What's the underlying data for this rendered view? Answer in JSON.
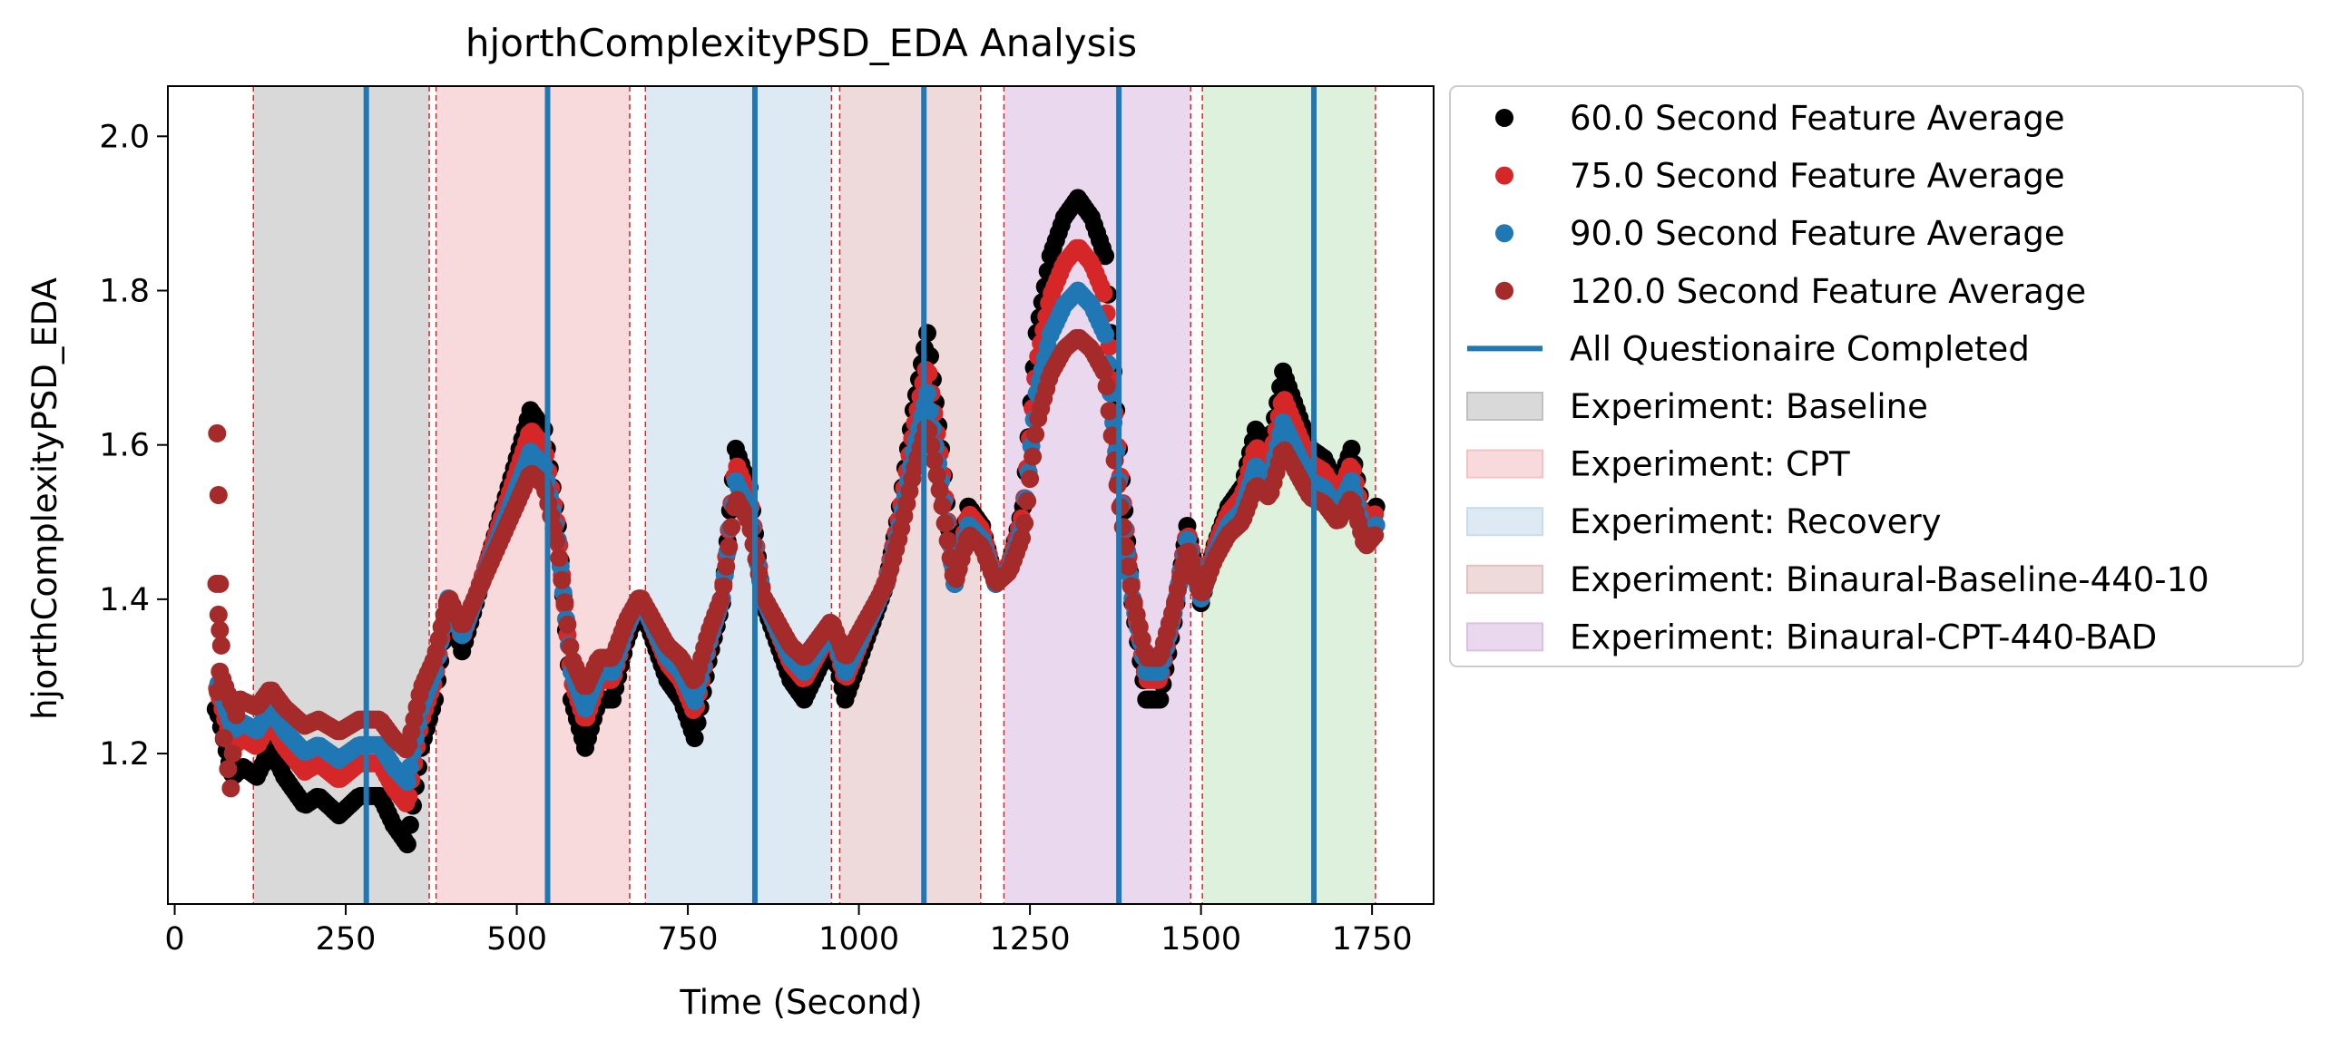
{
  "chart_data": {
    "type": "scatter",
    "title": "hjorthComplexityPSD_EDA Analysis",
    "xlabel": "Time (Second)",
    "ylabel": "hjorthComplexityPSD_EDA",
    "xlim": [
      -10,
      1840
    ],
    "ylim": [
      1.005,
      2.065
    ],
    "xticks": [
      0,
      250,
      500,
      750,
      1000,
      1250,
      1500,
      1750
    ],
    "yticks": [
      1.2,
      1.4,
      1.6,
      1.8,
      2.0
    ],
    "xtick_labels": [
      "0",
      "250",
      "500",
      "750",
      "1000",
      "1250",
      "1500",
      "1750"
    ],
    "ytick_labels": [
      "1.2",
      "1.4",
      "1.6",
      "1.8",
      "2.0"
    ],
    "legend_position": "outside-right-top",
    "grid": false,
    "colors": {
      "s60": "#000000",
      "s75": "#d62728",
      "s90": "#1f77b4",
      "s120": "#a52a2a",
      "questionnaire": "#1f77b4",
      "boundary": "#d62728"
    },
    "curve": [
      [
        62,
        1.29
      ],
      [
        75,
        1.25
      ],
      [
        85,
        1.22
      ],
      [
        100,
        1.23
      ],
      [
        120,
        1.22
      ],
      [
        140,
        1.25
      ],
      [
        160,
        1.22
      ],
      [
        190,
        1.19
      ],
      [
        210,
        1.2
      ],
      [
        240,
        1.18
      ],
      [
        270,
        1.2
      ],
      [
        300,
        1.2
      ],
      [
        320,
        1.17
      ],
      [
        340,
        1.15
      ],
      [
        360,
        1.25
      ],
      [
        380,
        1.3
      ],
      [
        400,
        1.4
      ],
      [
        420,
        1.35
      ],
      [
        440,
        1.4
      ],
      [
        460,
        1.45
      ],
      [
        480,
        1.5
      ],
      [
        500,
        1.55
      ],
      [
        520,
        1.6
      ],
      [
        540,
        1.58
      ],
      [
        560,
        1.48
      ],
      [
        580,
        1.3
      ],
      [
        600,
        1.25
      ],
      [
        620,
        1.3
      ],
      [
        640,
        1.3
      ],
      [
        660,
        1.36
      ],
      [
        680,
        1.4
      ],
      [
        700,
        1.36
      ],
      [
        720,
        1.32
      ],
      [
        740,
        1.3
      ],
      [
        760,
        1.26
      ],
      [
        780,
        1.34
      ],
      [
        800,
        1.4
      ],
      [
        820,
        1.56
      ],
      [
        840,
        1.52
      ],
      [
        860,
        1.4
      ],
      [
        880,
        1.36
      ],
      [
        900,
        1.32
      ],
      [
        920,
        1.3
      ],
      [
        940,
        1.33
      ],
      [
        960,
        1.36
      ],
      [
        980,
        1.3
      ],
      [
        1000,
        1.34
      ],
      [
        1020,
        1.38
      ],
      [
        1040,
        1.42
      ],
      [
        1060,
        1.5
      ],
      [
        1080,
        1.6
      ],
      [
        1100,
        1.68
      ],
      [
        1120,
        1.56
      ],
      [
        1140,
        1.42
      ],
      [
        1160,
        1.5
      ],
      [
        1180,
        1.48
      ],
      [
        1200,
        1.42
      ],
      [
        1220,
        1.44
      ],
      [
        1240,
        1.5
      ],
      [
        1260,
        1.68
      ],
      [
        1280,
        1.76
      ],
      [
        1300,
        1.8
      ],
      [
        1320,
        1.82
      ],
      [
        1340,
        1.8
      ],
      [
        1360,
        1.76
      ],
      [
        1380,
        1.56
      ],
      [
        1400,
        1.4
      ],
      [
        1420,
        1.3
      ],
      [
        1440,
        1.3
      ],
      [
        1460,
        1.38
      ],
      [
        1480,
        1.48
      ],
      [
        1500,
        1.4
      ],
      [
        1520,
        1.46
      ],
      [
        1540,
        1.5
      ],
      [
        1560,
        1.52
      ],
      [
        1580,
        1.58
      ],
      [
        1600,
        1.56
      ],
      [
        1620,
        1.64
      ],
      [
        1640,
        1.6
      ],
      [
        1660,
        1.56
      ],
      [
        1680,
        1.55
      ],
      [
        1700,
        1.52
      ],
      [
        1720,
        1.56
      ],
      [
        1740,
        1.48
      ],
      [
        1755,
        1.5
      ]
    ],
    "series": [
      {
        "name": "60.0 Second Feature Average",
        "color_key": "s60",
        "amp": 1.25,
        "offset": 0.0,
        "x_start": 60
      },
      {
        "name": "75.0 Second Feature Average",
        "color_key": "s75",
        "amp": 1.08,
        "offset": 0.005,
        "x_start": 62
      },
      {
        "name": "90.0 Second Feature Average",
        "color_key": "s90",
        "amp": 0.95,
        "offset": 0.0,
        "x_start": 64
      },
      {
        "name": "120.0 Second Feature Average",
        "color_key": "s120",
        "amp": 0.8,
        "offset": 0.0,
        "x_start": 66
      }
    ],
    "initial_points_120": [
      [
        62,
        1.615
      ],
      [
        64,
        1.535
      ],
      [
        61,
        1.42
      ],
      [
        66,
        1.42
      ],
      [
        64,
        1.38
      ],
      [
        66,
        1.36
      ],
      [
        68,
        1.34
      ],
      [
        63,
        1.28
      ],
      [
        72,
        1.22
      ],
      [
        78,
        1.18
      ],
      [
        82,
        1.155
      ],
      [
        85,
        1.2
      ],
      [
        90,
        1.25
      ],
      [
        96,
        1.27
      ]
    ],
    "questionnaire_lines": [
      280,
      545,
      848,
      1095,
      1380,
      1665
    ],
    "questionnaire_label": "All Questionaire Completed",
    "phases": [
      {
        "name": "Experiment: Baseline",
        "start": 115,
        "end": 372,
        "color": "#bfbfbf",
        "in_legend": true
      },
      {
        "name": "Experiment: CPT",
        "start": 382,
        "end": 665,
        "color": "#f4c2c5",
        "in_legend": true
      },
      {
        "name": "Experiment: Recovery",
        "start": 688,
        "end": 960,
        "color": "#c7dcec",
        "in_legend": true
      },
      {
        "name": "Experiment: Binaural-Baseline-440-10",
        "start": 972,
        "end": 1178,
        "color": "#e3c1c1",
        "in_legend": true
      },
      {
        "name": "Experiment: Binaural-CPT-440-BAD",
        "start": 1212,
        "end": 1485,
        "color": "#dcc0e2",
        "in_legend": true
      },
      {
        "name": "",
        "start": 1502,
        "end": 1755,
        "color": "#c6e7c6",
        "in_legend": false
      }
    ],
    "boundaries": [
      115,
      372,
      382,
      665,
      688,
      960,
      972,
      1178,
      1212,
      1485,
      1502,
      1755
    ]
  }
}
